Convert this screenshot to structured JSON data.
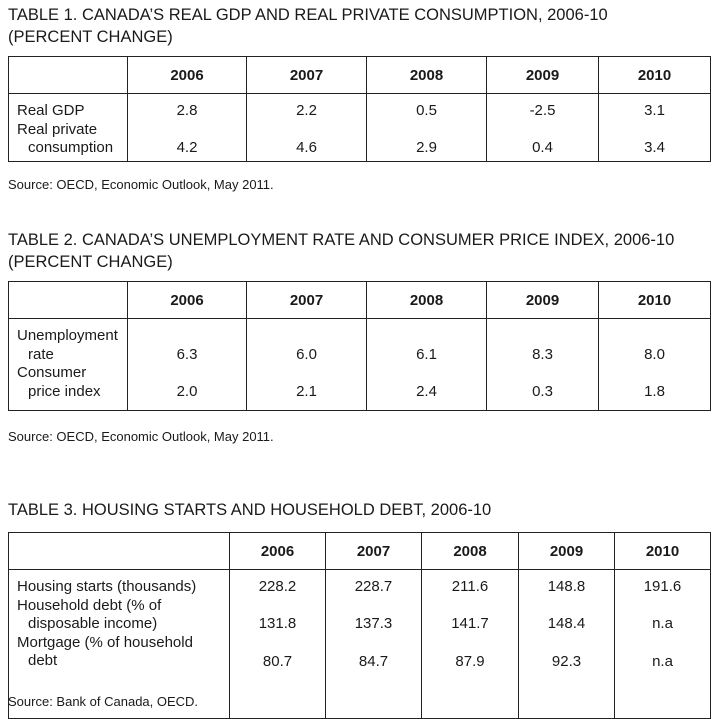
{
  "tables": [
    {
      "title_line1": "TABLE 1. CANADA’S REAL GDP AND REAL PRIVATE CONSUMPTION, 2006-10",
      "title_line2": "(PERCENT CHANGE)",
      "years": [
        "2006",
        "2007",
        "2008",
        "2009",
        "2010"
      ],
      "rows": [
        {
          "label_l1": "Real GDP",
          "label_l2": "",
          "values": [
            "2.8",
            "2.2",
            "0.5",
            "-2.5",
            "3.1"
          ]
        },
        {
          "label_l1": "Real private",
          "label_l2": "consumption",
          "values": [
            "4.2",
            "4.6",
            "2.9",
            "0.4",
            "3.4"
          ]
        }
      ],
      "source": "Source: OECD, Economic Outlook, May 2011."
    },
    {
      "title_line1": "TABLE 2. CANADA’S UNEMPLOYMENT RATE AND CONSUMER PRICE INDEX, 2006-10",
      "title_line2": "(PERCENT CHANGE)",
      "years": [
        "2006",
        "2007",
        "2008",
        "2009",
        "2010"
      ],
      "rows": [
        {
          "label_l1": "Unemployment",
          "label_l2": "rate",
          "values": [
            "6.3",
            "6.0",
            "6.1",
            "8.3",
            "8.0"
          ]
        },
        {
          "label_l1": "Consumer",
          "label_l2": "price index",
          "values": [
            "2.0",
            "2.1",
            "2.4",
            "0.3",
            "1.8"
          ]
        }
      ],
      "source": "Source: OECD, Economic Outlook, May 2011."
    },
    {
      "title_line1": "TABLE 3. HOUSING STARTS AND HOUSEHOLD DEBT, 2006-10",
      "years": [
        "2006",
        "2007",
        "2008",
        "2009",
        "2010"
      ],
      "rows": [
        {
          "label_l1": "Housing starts (thousands)",
          "label_l2": "",
          "values": [
            "228.2",
            "228.7",
            "211.6",
            "148.8",
            "191.6"
          ]
        },
        {
          "label_l1": "Household debt (% of",
          "label_l2": "disposable income)",
          "values": [
            "131.8",
            "137.3",
            "141.7",
            "148.4",
            "n.a"
          ]
        },
        {
          "label_l1": "Mortgage (% of household",
          "label_l2": "debt",
          "values": [
            "80.7",
            "84.7",
            "87.9",
            "92.3",
            "n.a"
          ]
        }
      ],
      "source": "Source: Bank of Canada, OECD."
    }
  ]
}
